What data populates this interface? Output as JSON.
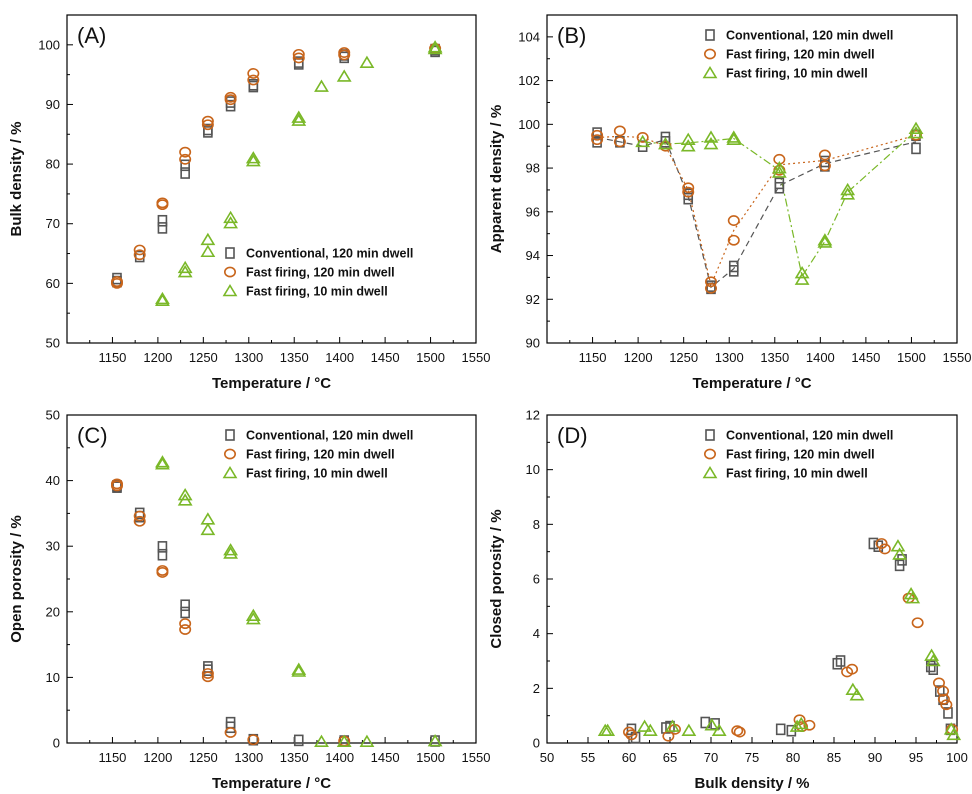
{
  "figure": {
    "colors": {
      "conventional": "#555555",
      "fast120": "#c8651b",
      "fast10": "#7ab828"
    },
    "legend": [
      {
        "key": "conventional",
        "label": "Conventional, 120 min dwell",
        "marker": "square"
      },
      {
        "key": "fast120",
        "label": "Fast firing, 120 min dwell",
        "marker": "circle"
      },
      {
        "key": "fast10",
        "label": "Fast firing, 10 min dwell",
        "marker": "triangle"
      }
    ]
  },
  "chart_data": [
    {
      "type": "scatter",
      "panel": "(A)",
      "xlabel": "Temperature / °C",
      "ylabel": "Bulk density / %",
      "xlim": [
        1100,
        1550
      ],
      "ylim": [
        50,
        105
      ],
      "xticks": [
        1150,
        1200,
        1250,
        1300,
        1350,
        1400,
        1450,
        1500,
        1550
      ],
      "yticks": [
        50,
        60,
        70,
        80,
        90,
        100
      ],
      "legend_position": "bottom-right",
      "series": [
        {
          "name": "Conventional, 120 min dwell",
          "key": "conventional",
          "marker": "square",
          "points": [
            [
              1155,
              60.8
            ],
            [
              1155,
              60.3
            ],
            [
              1180,
              64.5
            ],
            [
              1205,
              70.5
            ],
            [
              1205,
              69.3
            ],
            [
              1230,
              79.8
            ],
            [
              1230,
              78.5
            ],
            [
              1255,
              85.8
            ],
            [
              1255,
              85.4
            ],
            [
              1280,
              89.8
            ],
            [
              1280,
              90.4
            ],
            [
              1305,
              93.3
            ],
            [
              1305,
              93.0
            ],
            [
              1355,
              97.1
            ],
            [
              1355,
              96.8
            ],
            [
              1405,
              98.3
            ],
            [
              1405,
              97.9
            ],
            [
              1505,
              99.2
            ],
            [
              1505,
              98.9
            ]
          ]
        },
        {
          "name": "Fast firing, 120 min dwell",
          "key": "fast120",
          "marker": "circle",
          "points": [
            [
              1155,
              60.3
            ],
            [
              1155,
              60.0
            ],
            [
              1180,
              65.6
            ],
            [
              1180,
              64.8
            ],
            [
              1205,
              73.5
            ],
            [
              1205,
              73.2
            ],
            [
              1230,
              82.0
            ],
            [
              1230,
              80.8
            ],
            [
              1255,
              87.2
            ],
            [
              1255,
              86.6
            ],
            [
              1280,
              91.2
            ],
            [
              1280,
              90.8
            ],
            [
              1305,
              95.2
            ],
            [
              1305,
              94.1
            ],
            [
              1355,
              98.4
            ],
            [
              1355,
              97.8
            ],
            [
              1405,
              98.7
            ],
            [
              1405,
              98.3
            ],
            [
              1505,
              99.4
            ]
          ]
        },
        {
          "name": "Fast firing, 10 min dwell",
          "key": "fast10",
          "marker": "triangle",
          "points": [
            [
              1205,
              57.4
            ],
            [
              1205,
              57.1
            ],
            [
              1230,
              62.6
            ],
            [
              1230,
              61.9
            ],
            [
              1255,
              67.3
            ],
            [
              1255,
              65.3
            ],
            [
              1280,
              71.0
            ],
            [
              1280,
              70.1
            ],
            [
              1305,
              81.0
            ],
            [
              1305,
              80.5
            ],
            [
              1355,
              87.8
            ],
            [
              1355,
              87.3
            ],
            [
              1380,
              93.0
            ],
            [
              1405,
              94.7
            ],
            [
              1430,
              97.0
            ],
            [
              1505,
              99.6
            ],
            [
              1505,
              99.3
            ]
          ]
        }
      ]
    },
    {
      "type": "scatter",
      "panel": "(B)",
      "xlabel": "Temperature / °C",
      "ylabel": "Apparent density / %",
      "xlim": [
        1100,
        1550
      ],
      "ylim": [
        90,
        105
      ],
      "xticks": [
        1150,
        1200,
        1250,
        1300,
        1350,
        1400,
        1450,
        1500,
        1550
      ],
      "yticks": [
        90,
        92,
        94,
        96,
        98,
        100,
        102,
        104
      ],
      "legend_position": "top-right",
      "trend_lines": true,
      "series": [
        {
          "name": "Conventional, 120 min dwell",
          "key": "conventional",
          "marker": "square",
          "dash": "6,4",
          "points": [
            [
              1155,
              99.6
            ],
            [
              1155,
              99.2
            ],
            [
              1180,
              99.2
            ],
            [
              1205,
              99.0
            ],
            [
              1230,
              99.4
            ],
            [
              1230,
              99.2
            ],
            [
              1255,
              96.8
            ],
            [
              1255,
              96.6
            ],
            [
              1280,
              92.6
            ],
            [
              1280,
              92.5
            ],
            [
              1305,
              93.5
            ],
            [
              1305,
              93.3
            ],
            [
              1355,
              97.3
            ],
            [
              1355,
              97.1
            ],
            [
              1405,
              98.3
            ],
            [
              1405,
              98.1
            ],
            [
              1505,
              99.5
            ],
            [
              1505,
              98.9
            ]
          ]
        },
        {
          "name": "Fast firing, 120 min dwell",
          "key": "fast120",
          "marker": "circle",
          "dash": "2,3",
          "points": [
            [
              1155,
              99.5
            ],
            [
              1155,
              99.3
            ],
            [
              1180,
              99.7
            ],
            [
              1180,
              99.2
            ],
            [
              1205,
              99.4
            ],
            [
              1230,
              99.0
            ],
            [
              1255,
              97.1
            ],
            [
              1255,
              96.9
            ],
            [
              1280,
              92.8
            ],
            [
              1280,
              92.5
            ],
            [
              1305,
              95.6
            ],
            [
              1305,
              94.7
            ],
            [
              1355,
              98.4
            ],
            [
              1355,
              97.9
            ],
            [
              1405,
              98.6
            ],
            [
              1405,
              98.1
            ],
            [
              1505,
              99.5
            ]
          ]
        },
        {
          "name": "Fast firing, 10 min dwell",
          "key": "fast10",
          "marker": "triangle",
          "dash": "8,3,2,3",
          "points": [
            [
              1205,
              99.2
            ],
            [
              1230,
              99.1
            ],
            [
              1255,
              99.3
            ],
            [
              1255,
              99.0
            ],
            [
              1280,
              99.4
            ],
            [
              1280,
              99.1
            ],
            [
              1305,
              99.4
            ],
            [
              1305,
              99.3
            ],
            [
              1355,
              98.0
            ],
            [
              1355,
              97.8
            ],
            [
              1380,
              93.2
            ],
            [
              1380,
              92.9
            ],
            [
              1405,
              94.7
            ],
            [
              1405,
              94.6
            ],
            [
              1430,
              97.0
            ],
            [
              1430,
              96.8
            ],
            [
              1505,
              99.8
            ],
            [
              1505,
              99.6
            ]
          ]
        }
      ]
    },
    {
      "type": "scatter",
      "panel": "(C)",
      "xlabel": "Temperature / °C",
      "ylabel": "Open porosity / %",
      "xlim": [
        1100,
        1550
      ],
      "ylim": [
        0,
        50
      ],
      "xticks": [
        1150,
        1200,
        1250,
        1300,
        1350,
        1400,
        1450,
        1500,
        1550
      ],
      "yticks": [
        0,
        10,
        20,
        30,
        40,
        50
      ],
      "legend_position": "top-right",
      "series": [
        {
          "name": "Conventional, 120 min dwell",
          "key": "conventional",
          "marker": "square",
          "points": [
            [
              1155,
              39.2
            ],
            [
              1155,
              39.0
            ],
            [
              1180,
              35.0
            ],
            [
              1180,
              34.5
            ],
            [
              1205,
              29.9
            ],
            [
              1205,
              28.7
            ],
            [
              1230,
              21.0
            ],
            [
              1230,
              19.9
            ],
            [
              1255,
              11.6
            ],
            [
              1255,
              11.1
            ],
            [
              1280,
              3.1
            ],
            [
              1280,
              2.4
            ],
            [
              1305,
              0.5
            ],
            [
              1355,
              0.4
            ],
            [
              1405,
              0.3
            ],
            [
              1505,
              0.3
            ]
          ]
        },
        {
          "name": "Fast firing, 120 min dwell",
          "key": "fast120",
          "marker": "circle",
          "points": [
            [
              1155,
              39.5
            ],
            [
              1155,
              39.2
            ],
            [
              1180,
              34.6
            ],
            [
              1180,
              33.8
            ],
            [
              1205,
              26.3
            ],
            [
              1205,
              26.0
            ],
            [
              1230,
              18.2
            ],
            [
              1230,
              17.3
            ],
            [
              1255,
              10.6
            ],
            [
              1255,
              10.1
            ],
            [
              1280,
              1.6
            ],
            [
              1305,
              0.5
            ],
            [
              1405,
              0.3
            ]
          ]
        },
        {
          "name": "Fast firing, 10 min dwell",
          "key": "fast10",
          "marker": "triangle",
          "points": [
            [
              1205,
              42.8
            ],
            [
              1205,
              42.5
            ],
            [
              1230,
              37.8
            ],
            [
              1230,
              37.0
            ],
            [
              1255,
              34.1
            ],
            [
              1255,
              32.5
            ],
            [
              1280,
              29.4
            ],
            [
              1280,
              28.9
            ],
            [
              1305,
              19.4
            ],
            [
              1305,
              18.9
            ],
            [
              1355,
              11.2
            ],
            [
              1355,
              10.9
            ],
            [
              1380,
              0.2
            ],
            [
              1405,
              0.2
            ],
            [
              1430,
              0.2
            ],
            [
              1505,
              0.3
            ]
          ]
        }
      ]
    },
    {
      "type": "scatter",
      "panel": "(D)",
      "xlabel": "Bulk density / %",
      "ylabel": "Closed porosity / %",
      "xlim": [
        50,
        100
      ],
      "ylim": [
        0,
        12
      ],
      "xticks": [
        50,
        55,
        60,
        65,
        70,
        75,
        80,
        85,
        90,
        95,
        100
      ],
      "yticks": [
        0,
        2,
        4,
        6,
        8,
        10,
        12
      ],
      "legend_position": "top-right",
      "series": [
        {
          "name": "Conventional, 120 min dwell",
          "key": "conventional",
          "marker": "square",
          "points": [
            [
              60.3,
              0.5
            ],
            [
              60.8,
              0.2
            ],
            [
              64.5,
              0.55
            ],
            [
              65.0,
              0.6
            ],
            [
              69.3,
              0.75
            ],
            [
              70.5,
              0.7
            ],
            [
              78.5,
              0.5
            ],
            [
              79.8,
              0.45
            ],
            [
              85.4,
              2.9
            ],
            [
              85.8,
              3.0
            ],
            [
              89.8,
              7.3
            ],
            [
              90.4,
              7.2
            ],
            [
              93.0,
              6.5
            ],
            [
              93.3,
              6.7
            ],
            [
              96.8,
              2.8
            ],
            [
              97.1,
              2.7
            ],
            [
              97.9,
              1.9
            ],
            [
              98.3,
              1.6
            ],
            [
              98.9,
              1.1
            ],
            [
              99.2,
              0.5
            ]
          ]
        },
        {
          "name": "Fast firing, 120 min dwell",
          "key": "fast120",
          "marker": "circle",
          "points": [
            [
              60.0,
              0.4
            ],
            [
              60.3,
              0.3
            ],
            [
              64.8,
              0.25
            ],
            [
              65.6,
              0.5
            ],
            [
              73.2,
              0.45
            ],
            [
              73.5,
              0.4
            ],
            [
              80.8,
              0.85
            ],
            [
              81.1,
              0.6
            ],
            [
              82.0,
              0.65
            ],
            [
              86.6,
              2.6
            ],
            [
              87.2,
              2.7
            ],
            [
              90.8,
              7.3
            ],
            [
              91.2,
              7.1
            ],
            [
              94.1,
              5.3
            ],
            [
              95.2,
              4.4
            ],
            [
              97.8,
              2.2
            ],
            [
              98.3,
              1.9
            ],
            [
              98.4,
              1.6
            ],
            [
              98.7,
              1.4
            ],
            [
              99.4,
              0.5
            ]
          ]
        },
        {
          "name": "Fast firing, 10 min dwell",
          "key": "fast10",
          "marker": "triangle",
          "points": [
            [
              57.1,
              0.45
            ],
            [
              57.4,
              0.45
            ],
            [
              61.9,
              0.6
            ],
            [
              62.6,
              0.45
            ],
            [
              65.3,
              0.6
            ],
            [
              67.3,
              0.45
            ],
            [
              70.1,
              0.65
            ],
            [
              71.0,
              0.45
            ],
            [
              80.5,
              0.6
            ],
            [
              81.0,
              0.7
            ],
            [
              87.3,
              1.95
            ],
            [
              87.8,
              1.75
            ],
            [
              92.8,
              7.2
            ],
            [
              93.0,
              6.9
            ],
            [
              94.4,
              5.45
            ],
            [
              94.6,
              5.3
            ],
            [
              96.9,
              3.2
            ],
            [
              97.1,
              3.0
            ],
            [
              99.3,
              0.5
            ],
            [
              99.6,
              0.3
            ]
          ]
        }
      ]
    }
  ]
}
